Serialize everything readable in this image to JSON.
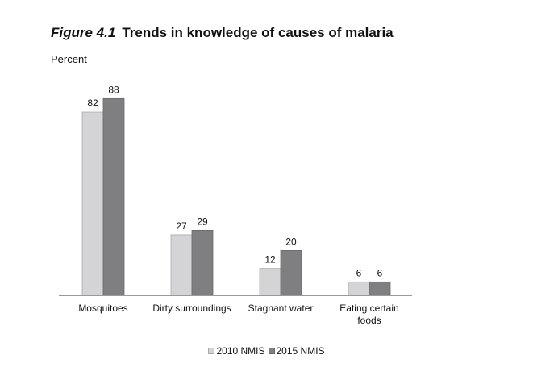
{
  "figure": {
    "number": "Figure 4.1",
    "title": "Trends in knowledge of causes of malaria"
  },
  "chart_data": {
    "type": "bar",
    "ylabel": "Percent",
    "xlabel": "",
    "categories": [
      [
        "Mosquitoes"
      ],
      [
        "Dirty surroundings"
      ],
      [
        "Stagnant water"
      ],
      [
        "Eating certain",
        "foods"
      ]
    ],
    "series": [
      {
        "name": "2010 NMIS",
        "values": [
          82,
          27,
          12,
          6
        ],
        "color": "#d4d4d6"
      },
      {
        "name": "2015 NMIS",
        "values": [
          88,
          29,
          20,
          6
        ],
        "color": "#7f7f82"
      }
    ],
    "ylim": [
      0,
      100
    ],
    "grid": false,
    "data_labels": true,
    "legend_position": "bottom-center"
  }
}
